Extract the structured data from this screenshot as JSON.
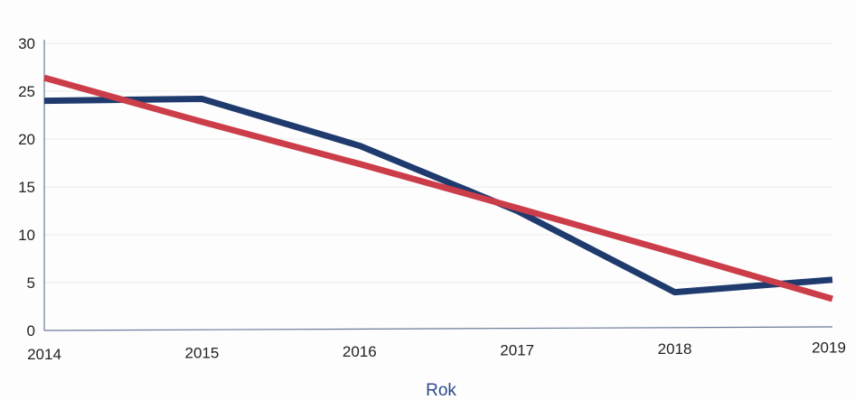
{
  "chart_data": {
    "type": "line",
    "title": "",
    "xlabel": "Rok",
    "ylabel": "",
    "x": [
      "2014",
      "2015",
      "2016",
      "2017",
      "2018",
      "2019"
    ],
    "ylim": [
      0,
      30
    ],
    "yticks": [
      0,
      5,
      10,
      15,
      20,
      25,
      30
    ],
    "grid": true,
    "series": [
      {
        "color": "#1f3b6e",
        "values": [
          24,
          24.2,
          19.3,
          12.5,
          4.0,
          5.3
        ]
      },
      {
        "color": "#cc3d4a",
        "values": [
          26.4,
          21.8,
          17.4,
          12.8,
          8.1,
          3.3
        ],
        "kind": "trend"
      }
    ]
  }
}
